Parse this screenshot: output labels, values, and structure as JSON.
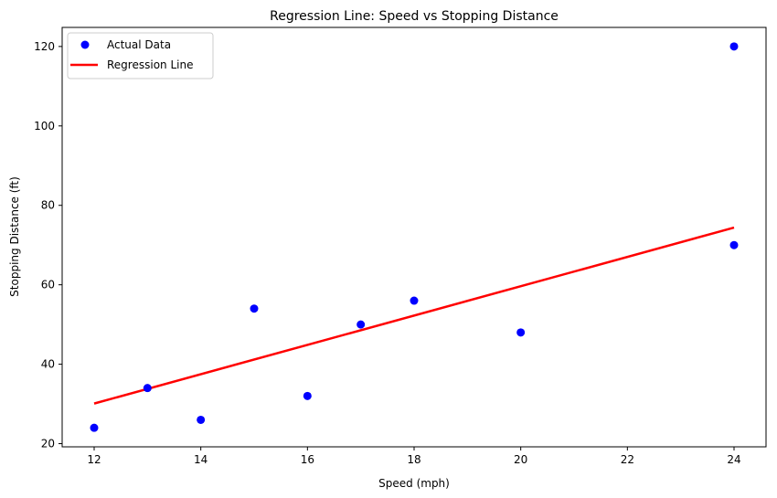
{
  "chart_data": {
    "type": "scatter",
    "title": "Regression Line: Speed vs Stopping Distance",
    "xlabel": "Speed (mph)",
    "ylabel": "Stopping Distance (ft)",
    "xlim": [
      11.4,
      24.6
    ],
    "ylim": [
      19.2,
      124.8
    ],
    "xticks": [
      12,
      14,
      16,
      18,
      20,
      22,
      24
    ],
    "yticks": [
      20,
      40,
      60,
      80,
      100,
      120
    ],
    "grid": false,
    "legend_position": "upper left",
    "series": [
      {
        "name": "Actual Data",
        "kind": "scatter",
        "color": "#0000ff",
        "x": [
          12,
          13,
          14,
          15,
          16,
          17,
          18,
          20,
          24,
          24
        ],
        "y": [
          24,
          34,
          26,
          54,
          32,
          50,
          56,
          48,
          70,
          120
        ]
      },
      {
        "name": "Regression Line",
        "kind": "line",
        "color": "#ff0000",
        "x": [
          12,
          24
        ],
        "y": [
          30.1,
          74.4
        ]
      }
    ]
  }
}
